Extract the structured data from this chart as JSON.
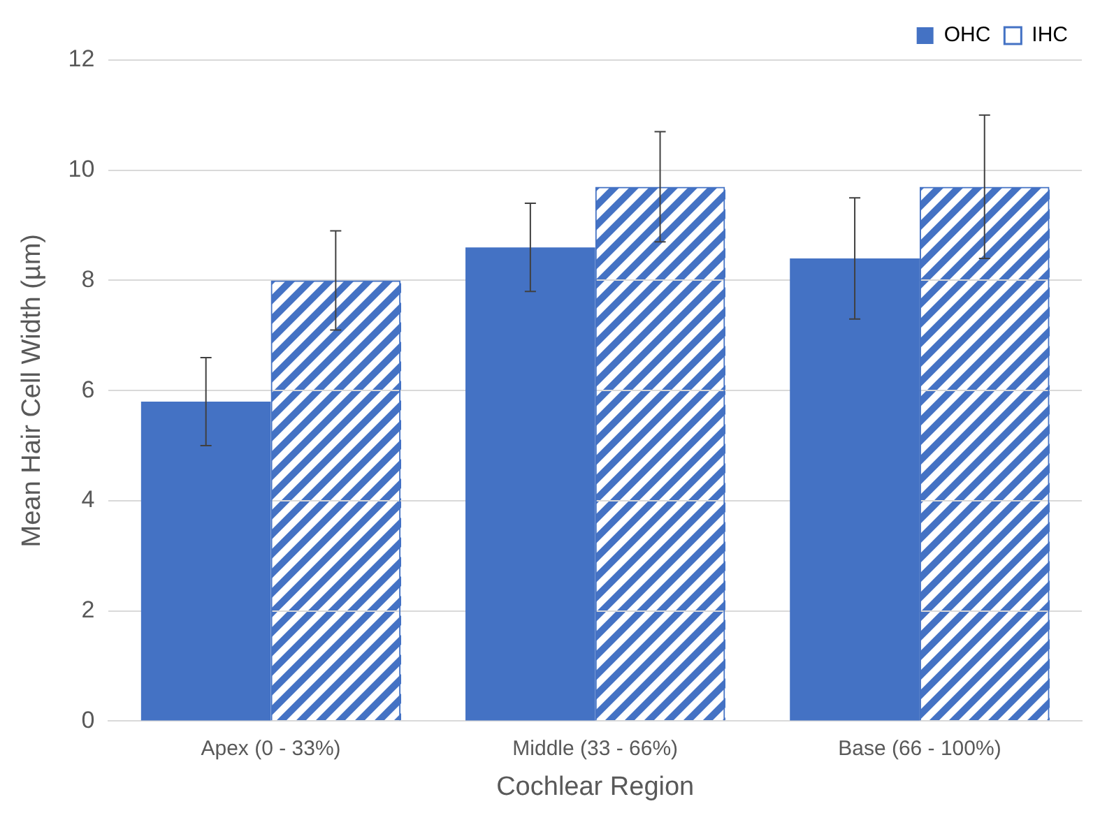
{
  "chart_data": {
    "type": "bar",
    "xlabel": "Cochlear Region",
    "ylabel": "Mean Hair Cell Width (µm)",
    "categories": [
      "Apex (0 - 33%)",
      "Middle (33 - 66%)",
      "Base (66 - 100%)"
    ],
    "series": [
      {
        "name": "OHC",
        "color": "#4472c4",
        "values": [
          5.8,
          8.6,
          8.4
        ],
        "errors": [
          [
            5.0,
            6.6
          ],
          [
            7.8,
            9.4
          ],
          [
            7.3,
            9.5
          ]
        ]
      },
      {
        "name": "IHC",
        "color": "#4472c4",
        "values": [
          8.0,
          9.7,
          9.7
        ],
        "errors": [
          [
            7.1,
            8.9
          ],
          [
            8.7,
            10.7
          ],
          [
            8.4,
            11.0
          ]
        ]
      }
    ],
    "ylim": [
      0,
      12
    ],
    "yticks": [
      0,
      2,
      4,
      6,
      8,
      10,
      12
    ],
    "grid": "y",
    "legend": "top right"
  }
}
